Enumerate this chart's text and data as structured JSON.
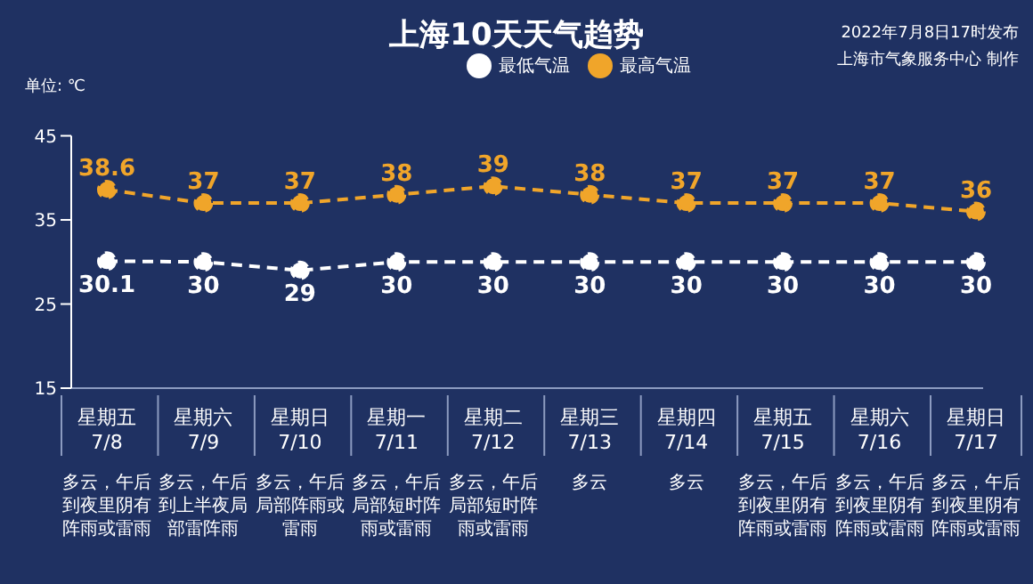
{
  "chart_data": {
    "type": "line",
    "title": "上海10天天气趋势",
    "ylabel": "单位: ℃",
    "categories": [
      "星期五 7/8",
      "星期六 7/9",
      "星期日 7/10",
      "星期一 7/11",
      "星期二 7/12",
      "星期三 7/13",
      "星期四 7/14",
      "星期五 7/15",
      "星期六 7/16",
      "星期日 7/17"
    ],
    "series": [
      {
        "name": "最高气温",
        "color": "#f0a52a",
        "values": [
          38.6,
          37,
          37,
          38,
          39,
          38,
          37,
          37,
          37,
          36
        ]
      },
      {
        "name": "最低气温",
        "color": "#ffffff",
        "values": [
          30.1,
          30,
          29,
          30,
          30,
          30,
          30,
          30,
          30,
          30
        ]
      }
    ],
    "ylim": [
      15,
      45
    ],
    "yticks": [
      15,
      25,
      35,
      45
    ],
    "grid": false,
    "legend": "top",
    "marker": "circle",
    "line_style": "dashed",
    "data_labels": true,
    "annotations": [
      "2022年7月8日17时发布",
      "上海市气象服务中心 制作",
      "多云，午后到夜里阴有阵雨或雷雨",
      "多云，午后到上半夜局部雷阵雨",
      "多云，午后局部阵雨或雷雨",
      "多云，午后局部短时阵雨或雷雨",
      "多云，午后局部短时阵雨或雷雨",
      "多云",
      "多云",
      "多云，午后到夜里阴有阵雨或雷雨",
      "多云，午后到夜里阴有阵雨或雷雨",
      "多云，午后到夜里阴有阵雨或雷雨"
    ]
  }
}
